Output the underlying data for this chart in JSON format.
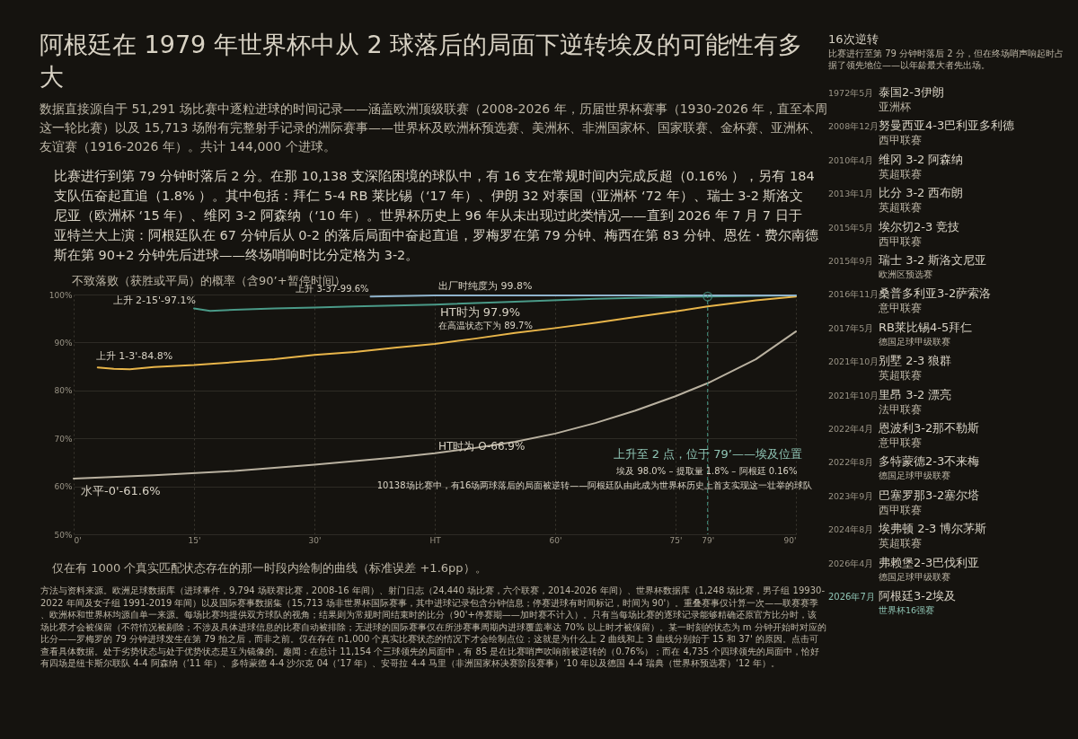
{
  "chart_data": {
    "type": "line",
    "title": "阿根廷在 1979 年世界杯中从 2 球落后的局面下逆转埃及的可能性有多大",
    "subtitle": "数据直接源自于 51,291 场比赛中逐粒进球的时间记录——涵盖欧洲顶级联赛（2008-2026 年，历届世界杯赛事（1930-2026 年，直至本周这一轮比赛）以及 15,713 场附有完整射手记录的洲际赛事——世界杯及欧洲杯预选赛、美洲杯、非洲国家杯、国家联赛、金杯赛、亚洲杯、友谊赛（1916-2026 年）。共计 144,000 个进球。",
    "ylabel": "不致落败（获胜或平局）的概率（含90’+暂停时间）",
    "xlim": [
      0,
      90
    ],
    "ylim": [
      50,
      100
    ],
    "xticks": [
      {
        "value": 0,
        "label": "0'"
      },
      {
        "value": 15,
        "label": "15'"
      },
      {
        "value": 30,
        "label": "30'"
      },
      {
        "value": 45,
        "label": "HT"
      },
      {
        "value": 60,
        "label": "60'"
      },
      {
        "value": 75,
        "label": "75'"
      },
      {
        "value": 79,
        "label": "79'"
      },
      {
        "value": 90,
        "label": "90'"
      }
    ],
    "yticks": [
      {
        "value": 50,
        "label": "50%"
      },
      {
        "value": 60,
        "label": "60%"
      },
      {
        "value": 70,
        "label": "70%"
      },
      {
        "value": 80,
        "label": "80%"
      },
      {
        "value": 90,
        "label": "90%"
      },
      {
        "value": 100,
        "label": "100%"
      }
    ],
    "grid": true,
    "series": [
      {
        "type": "line",
        "color": "#b9b1a0",
        "x": [
          0,
          10,
          20,
          30,
          40,
          45,
          50,
          55,
          60,
          65,
          70,
          75,
          79,
          85,
          90
        ],
        "values": [
          61.6,
          62.3,
          63.2,
          64.5,
          66.0,
          66.9,
          68.0,
          69.3,
          71.0,
          73.2,
          75.8,
          78.8,
          81.5,
          86.5,
          92.3
        ]
      },
      {
        "type": "line",
        "color": "#e8b54a",
        "x": [
          3,
          5,
          7,
          10,
          15,
          20,
          25,
          30,
          35,
          40,
          45,
          50,
          55,
          60,
          65,
          70,
          75,
          79,
          85,
          90
        ],
        "values": [
          84.8,
          84.5,
          84.4,
          84.9,
          85.3,
          85.9,
          86.5,
          87.4,
          88.0,
          88.9,
          89.7,
          90.8,
          92.0,
          93.0,
          94.1,
          95.3,
          96.5,
          97.5,
          98.8,
          99.6
        ]
      },
      {
        "type": "line",
        "color": "#4a9a88",
        "x": [
          15,
          17,
          20,
          25,
          30,
          35,
          40,
          45,
          55,
          65,
          75,
          79,
          90
        ],
        "values": [
          97.1,
          96.6,
          96.8,
          97.1,
          97.3,
          97.5,
          97.7,
          97.9,
          98.5,
          99.1,
          99.5,
          99.6,
          99.8
        ]
      },
      {
        "type": "line",
        "color": "#8fb3cc",
        "x": [
          37,
          45,
          60,
          75,
          90
        ],
        "values": [
          99.6,
          99.8,
          99.8,
          99.8,
          99.8
        ]
      },
      {
        "type": "scatter",
        "marker": "circle",
        "color": "#4a9a88",
        "x": [
          79
        ],
        "values": [
          99.6
        ]
      }
    ],
    "ref_lines": [
      {
        "axis": "x",
        "value": 79,
        "label": "上升至 2 点，位于 79’——埃及位置",
        "color": "#4a9a88",
        "line_style": "dashed"
      }
    ],
    "annotations": [
      {
        "text": "上升 3-37-99.6%",
        "x": 37,
        "y": 99.6
      },
      {
        "text": "上升 2-15'-97.1%",
        "x": 15,
        "y": 97.1
      },
      {
        "text": "上升 1-3'-84.8%",
        "x": 3,
        "y": 84.8
      },
      {
        "text": "水平-0'-61.6%",
        "x": 0,
        "y": 61.6
      },
      {
        "text": "出厂时纯度为 99.8%",
        "x": 45,
        "y": 99.8
      },
      {
        "text": "HT时为 97.9%",
        "x": 45,
        "y": 97.9
      },
      {
        "text": "在高温状态下为 89.7%",
        "x": 45,
        "y": 89.7
      },
      {
        "text": "HT时为 O-66.9%",
        "x": 45,
        "y": 66.9
      },
      "比赛进行到第 79 分钟时落后 2 分。在那 10,138 支深陷困境的球队中，有 16 支在常规时间内完成反超（0.16% ），另有 184 支队伍奋起直追（1.8% ）。其中包括：拜仁 5-4 RB 莱比锡（‘17 年）、伊朗 32 对泰国（亚洲杯 ‘72 年）、瑞士 3-2 斯洛文尼亚（欧洲杯 ‘15 年）、维冈 3-2 阿森纳（‘10 年）。世界杯历史上 96 年从未出现过此类情况——直到 2026 年 7 月 7 日于亚特兰大上演：阿根廷队在 67 分钟后从 0-2 的落后局面中奋起直追，罗梅罗在第 79 分钟、梅西在第 83 分钟、恩佐・费尔南德斯在第 90+2 分钟先后进球——终场哨响时比分定格为 3-2。",
      "埃及 98.0% – 提取量 1.8% – 阿根廷 0.16%",
      "10138场比赛中，有16场两球落后的局面被逆转——阿根廷队由此成为世界杯历史上首支实现这一壮举的球队",
      "仅在有 1000 个真实匹配状态存在的那一时段内绘制的曲线（标准误差 +1.6pp）。",
      "方法与资料来源。欧洲足球数据库（进球事件，9,794 场联赛比赛，2008-16 年间）、射门日志（24,440 场比赛，六个联赛，2014-2026 年间）、世界杯数据库（1,248 场比赛，男子组 19930-2022 年间及女子组 1991-2019 年间）以及国际赛事数据集（15,713 场非世界杯国际赛事，其中进球记录包含分钟信息；停赛进球有时间标记，时间为 90'）。重叠赛事仅计算一次——联赛赛季、欧洲杯和世界杯均源自单一来源。每场比赛均提供双方球队的视角；结果则为常规时间结束时的比分（90'+停赛期——加时赛不计入）。只有当每场比赛的逐球记录能够精确还原官方比分时，该场比赛才会被保留（不符情况被剔除；不涉及具体进球信息的比赛自动被排除；无进球的国际赛事仅在所涉赛事周期内进球覆盖率达 70% 以上时才被保留）。某一时刻的状态为 m 分钟开始时对应的比分——罗梅罗的 79 分钟进球发生在第 79 拍之后，而非之前。仅在存在 n1,000 个真实比赛状态的情况下才会绘制点位；这就是为什么上 2 曲线和上 3 曲线分别始于 15 和 37' 的原因。点击可查看具体数据。处于劣势状态与处于优势状态是互为镜像的。趣闻：在总计 11,154 个三球领先的局面中，有 85 是在比赛哨声吹响前被逆转的（0.76%）；而在 4,735 个四球领先的局面中，恰好有四场是纽卡斯尔联队 4-4 阿森纳（‘11 年）、多特蒙德 4-4 沙尔克 04（‘17 年）、安哥拉 4-4 马里（非洲国家杯决赛阶段赛事）‘10 年以及德国 4-4 瑞典（世界杯预选赛）‘12 年）。",
      "16次逆转",
      "比赛进行至第 79 分钟时落后 2 分，但在终场哨声响起时占据了领先地位——以年龄最大者先出场。",
      "1972年5月",
      "泰国2-3伊朗",
      "亚洲杯",
      "2008年12月",
      "努曼西亚4-3巴利亚多利德",
      "西甲联赛",
      "2010年4月",
      "维冈 3-2 阿森纳",
      "英超联赛",
      "2013年1月",
      "比分 3-2 西布朗",
      "英超联赛",
      "2015年5月",
      "埃尔切2-3 竞技",
      "西甲联赛",
      "2015年9月",
      "瑞士 3-2 斯洛文尼亚",
      "欧洲区预选赛",
      "2016年11月",
      "桑普多利亚3-2萨索洛",
      "意甲联赛",
      "2017年5月",
      "RB莱比锡4-5拜仁",
      "德国足球甲级联赛",
      "2021年10月",
      "别墅 2-3 狼群",
      "英超联赛",
      "2021年10月",
      "里昂 3-2 漂亮",
      "法甲联赛",
      "2022年4月",
      "恩波利3-2那不勒斯",
      "意甲联赛",
      "2022年8月",
      "多特蒙德2-3不来梅",
      "德国足球甲级联赛",
      "2023年9月",
      "巴塞罗那3-2塞尔塔",
      "西甲联赛",
      "2024年8月",
      "埃弗顿 2-3 博尔茅斯",
      "英超联赛",
      "2026年4月",
      "弗赖堡2-3巴伐利亚",
      "德国足球甲级联赛",
      "2026年7月",
      "阿根廷3-2埃及",
      "世界杯16强赛"
    ]
  }
}
